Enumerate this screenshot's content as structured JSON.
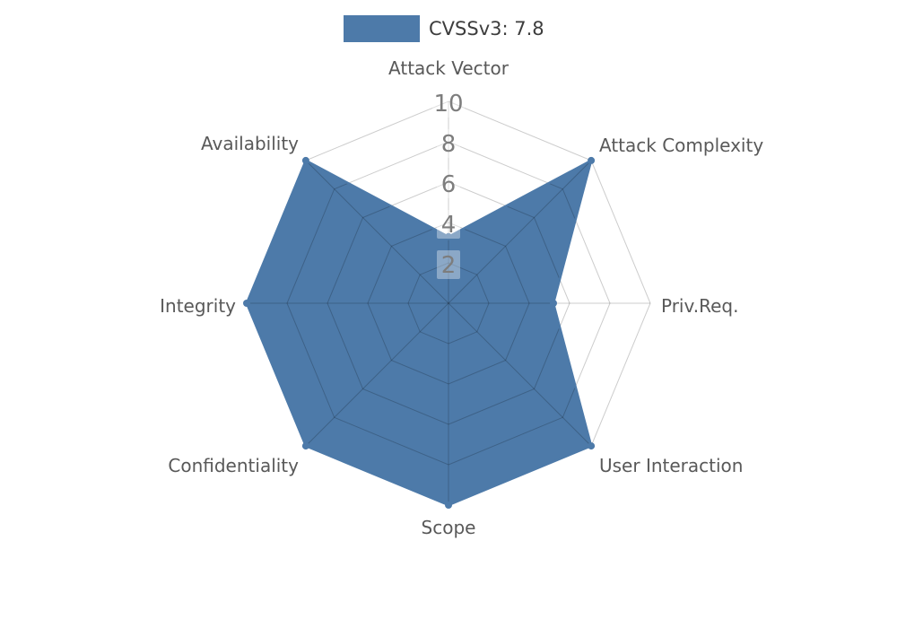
{
  "legend": {
    "label": "CVSSv3: 7.8",
    "swatch_color": "#4d7aa9"
  },
  "chart_data": {
    "type": "radar",
    "title": "CVSSv3: 7.8",
    "categories": [
      "Attack Vector",
      "Attack Complexity",
      "Priv.Req.",
      "User Interaction",
      "Scope",
      "Confidentiality",
      "Integrity",
      "Availability"
    ],
    "series": [
      {
        "name": "CVSSv3: 7.8",
        "values": [
          3.3,
          10,
          5.2,
          10,
          10,
          10,
          10,
          10
        ]
      }
    ],
    "radial_ticks": [
      2,
      4,
      6,
      8,
      10
    ],
    "rlim": [
      0,
      10
    ],
    "start_angle_deg": 90,
    "direction": "clockwise",
    "grid": "spider-web",
    "legend_position": "top-center",
    "colors": {
      "fill": "#4d7aa9",
      "outline": "#4d7aa9",
      "grid_line": "rgba(0,0,0,0.2)",
      "category_label": "#595959",
      "tick_label": "#7d7d7d",
      "tick_box": "rgba(255,255,255,0.35)"
    }
  }
}
